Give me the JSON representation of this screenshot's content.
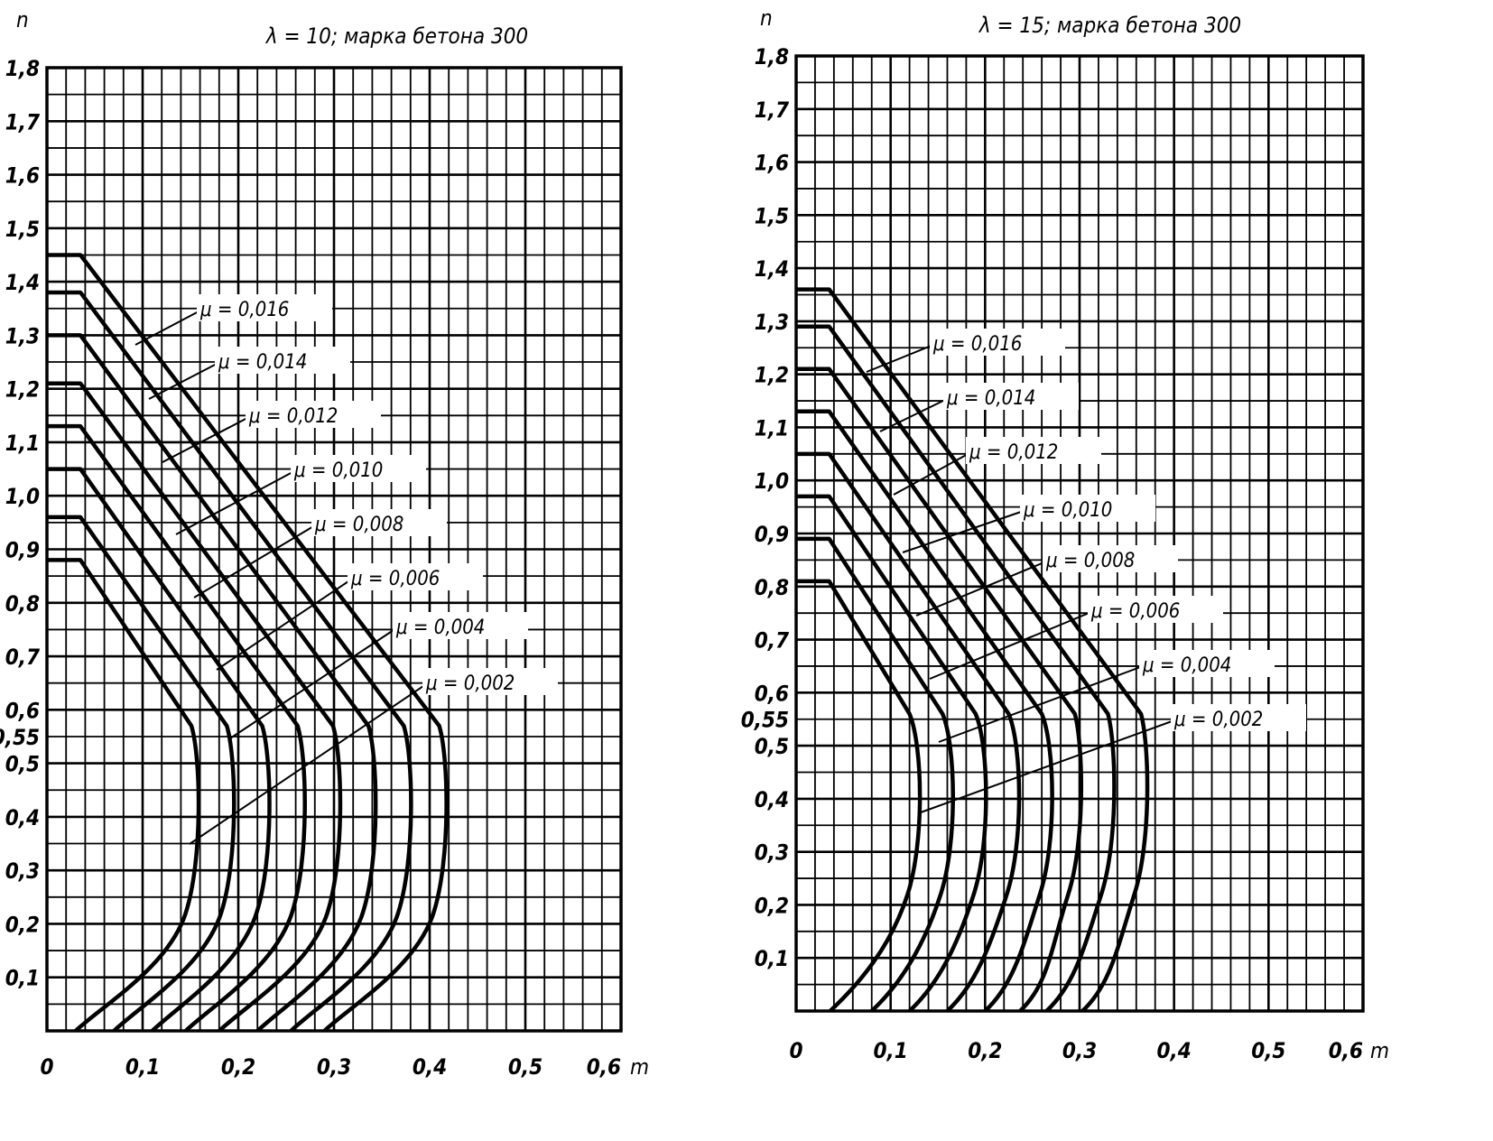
{
  "chart_data": [
    {
      "type": "line",
      "title": "λ = 10; марка бетона 300",
      "xlabel": "m",
      "ylabel": "n",
      "xlim": [
        0,
        0.6
      ],
      "ylim": [
        0,
        1.8
      ],
      "grid": true,
      "x_ticks": [
        "0",
        "0,1",
        "0,2",
        "0,3",
        "0,4",
        "0,5",
        "0,6"
      ],
      "y_ticks": [
        "1,8",
        "1,7",
        "1,6",
        "1,5",
        "1,4",
        "1,3",
        "1,2",
        "1,1",
        "1,0",
        "0,9",
        "0,8",
        "0,7",
        "0,6",
        "0,55",
        "0,5",
        "0,4",
        "0,3",
        "0,2",
        "0,1"
      ],
      "y_tick_values": [
        1.8,
        1.7,
        1.6,
        1.5,
        1.4,
        1.3,
        1.2,
        1.1,
        1.0,
        0.9,
        0.8,
        0.7,
        0.6,
        0.55,
        0.5,
        0.4,
        0.3,
        0.2,
        0.1
      ],
      "series": [
        {
          "name": "μ = 0,016",
          "n_top": 1.45,
          "m_corner": 0.41,
          "n_corner": 0.57,
          "m_bulge": 0.416,
          "m_bottom": 0.29
        },
        {
          "name": "μ = 0,014",
          "n_top": 1.38,
          "m_corner": 0.373,
          "n_corner": 0.57,
          "m_bulge": 0.379,
          "m_bottom": 0.255
        },
        {
          "name": "μ = 0,012",
          "n_top": 1.3,
          "m_corner": 0.336,
          "n_corner": 0.57,
          "m_bulge": 0.342,
          "m_bottom": 0.22
        },
        {
          "name": "μ = 0,010",
          "n_top": 1.21,
          "m_corner": 0.299,
          "n_corner": 0.57,
          "m_bulge": 0.305,
          "m_bottom": 0.18
        },
        {
          "name": "μ = 0,008",
          "n_top": 1.13,
          "m_corner": 0.262,
          "n_corner": 0.57,
          "m_bulge": 0.268,
          "m_bottom": 0.145
        },
        {
          "name": "μ = 0,006",
          "n_top": 1.05,
          "m_corner": 0.225,
          "n_corner": 0.57,
          "m_bulge": 0.231,
          "m_bottom": 0.11
        },
        {
          "name": "μ = 0,004",
          "n_top": 0.96,
          "m_corner": 0.188,
          "n_corner": 0.57,
          "m_bulge": 0.194,
          "m_bottom": 0.07
        },
        {
          "name": "μ = 0,002",
          "n_top": 0.88,
          "m_corner": 0.151,
          "n_corner": 0.57,
          "m_bulge": 0.157,
          "m_bottom": 0.03
        }
      ]
    },
    {
      "type": "line",
      "title": "λ = 15; марка бетона 300",
      "xlabel": "m",
      "ylabel": "n",
      "xlim": [
        0,
        0.6
      ],
      "ylim": [
        0,
        1.8
      ],
      "grid": true,
      "x_ticks": [
        "0",
        "0,1",
        "0,2",
        "0,3",
        "0,4",
        "0,5",
        "0,6"
      ],
      "y_ticks": [
        "1,8",
        "1,7",
        "1,6",
        "1,5",
        "1,4",
        "1,3",
        "1,2",
        "1,1",
        "1,0",
        "0,9",
        "0,8",
        "0,7",
        "0,6",
        "0,55",
        "0,5",
        "0,4",
        "0,3",
        "0,2",
        "0,1"
      ],
      "y_tick_values": [
        1.8,
        1.7,
        1.6,
        1.5,
        1.4,
        1.3,
        1.2,
        1.1,
        1.0,
        0.9,
        0.8,
        0.7,
        0.6,
        0.55,
        0.5,
        0.4,
        0.3,
        0.2,
        0.1
      ],
      "series": [
        {
          "name": "μ = 0,016",
          "n_top": 1.36,
          "m_corner": 0.365,
          "n_corner": 0.56,
          "m_bulge": 0.37,
          "m_bottom": 0.303
        },
        {
          "name": "μ = 0,014",
          "n_top": 1.29,
          "m_corner": 0.33,
          "n_corner": 0.56,
          "m_bulge": 0.335,
          "m_bottom": 0.265
        },
        {
          "name": "μ = 0,012",
          "n_top": 1.21,
          "m_corner": 0.295,
          "n_corner": 0.56,
          "m_bulge": 0.3,
          "m_bottom": 0.237
        },
        {
          "name": "μ = 0,010",
          "n_top": 1.13,
          "m_corner": 0.26,
          "n_corner": 0.56,
          "m_bulge": 0.27,
          "m_bottom": 0.2
        },
        {
          "name": "μ = 0,008",
          "n_top": 1.05,
          "m_corner": 0.225,
          "n_corner": 0.56,
          "m_bulge": 0.235,
          "m_bottom": 0.16
        },
        {
          "name": "μ = 0,006",
          "n_top": 0.97,
          "m_corner": 0.19,
          "n_corner": 0.56,
          "m_bulge": 0.2,
          "m_bottom": 0.12
        },
        {
          "name": "μ = 0,004",
          "n_top": 0.89,
          "m_corner": 0.155,
          "n_corner": 0.56,
          "m_bulge": 0.165,
          "m_bottom": 0.08
        },
        {
          "name": "μ = 0,002",
          "n_top": 0.81,
          "m_corner": 0.12,
          "n_corner": 0.56,
          "m_bulge": 0.13,
          "m_bottom": 0.036
        }
      ]
    }
  ]
}
